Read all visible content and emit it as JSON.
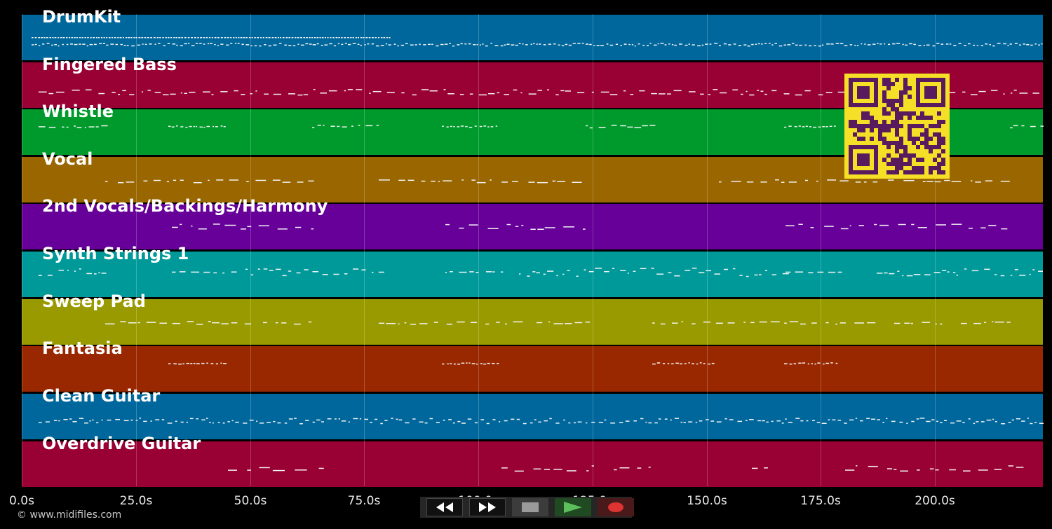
{
  "tracks": [
    {
      "name": "DrumKit",
      "color": "#00679c"
    },
    {
      "name": "Fingered Bass",
      "color": "#990033"
    },
    {
      "name": "Whistle",
      "color": "#009a2c"
    },
    {
      "name": "Vocal",
      "color": "#996600"
    },
    {
      "name": "2nd Vocals/Backings/Harmony",
      "color": "#660099"
    },
    {
      "name": "Synth Strings 1",
      "color": "#00999a"
    },
    {
      "name": "Sweep Pad",
      "color": "#999a00"
    },
    {
      "name": "Fantasia",
      "color": "#992800"
    },
    {
      "name": "Clean Guitar",
      "color": "#00679c"
    },
    {
      "name": "Overdrive Guitar",
      "color": "#990033"
    }
  ],
  "timeline": {
    "ticks": [
      "0.0s",
      "25.0s",
      "50.0s",
      "75.0s",
      "100.0s",
      "125.0s",
      "150.0s",
      "175.0s",
      "200.0s"
    ]
  },
  "footer": {
    "copyright": "© www.midifiles.com"
  },
  "transport": {
    "rewind_icon": "rewind-icon",
    "forward_icon": "fast-forward-icon",
    "stop_icon": "stop-icon",
    "play_icon": "play-icon",
    "record_icon": "record-icon"
  },
  "qr": {
    "fg": "#5a1a5e",
    "bg": "#f6e027"
  }
}
